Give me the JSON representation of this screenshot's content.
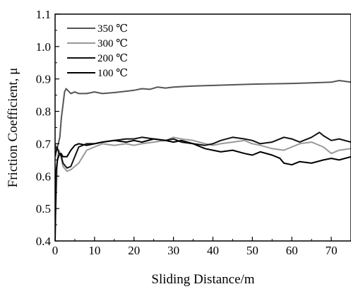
{
  "chart_data": {
    "type": "line",
    "title": "",
    "xlabel": "Sliding Distance/m",
    "ylabel": "Friction Coefficient, μ",
    "xlim": [
      0,
      75
    ],
    "ylim": [
      0.4,
      1.1
    ],
    "xticks": [
      0,
      10,
      20,
      30,
      40,
      50,
      60,
      70
    ],
    "xtick_labels": [
      "0",
      "10",
      "20",
      "30",
      "40",
      "50",
      "60",
      "70"
    ],
    "yticks": [
      0.4,
      0.5,
      0.6,
      0.7,
      0.8,
      0.9,
      1.0,
      1.1
    ],
    "ytick_labels": [
      "0.4",
      "0.5",
      "0.6",
      "0.7",
      "0.8",
      "0.9",
      "1.0",
      "1.1"
    ],
    "grid": false,
    "legend_position": "top-left",
    "series": [
      {
        "name": "350 ℃",
        "color": "#555555",
        "x": [
          0,
          0.4,
          0.8,
          1.2,
          1.6,
          2.0,
          2.4,
          2.8,
          3.2,
          4,
          5,
          6,
          8,
          10,
          12,
          15,
          18,
          20,
          22,
          24,
          26,
          28,
          30,
          35,
          40,
          45,
          50,
          55,
          60,
          65,
          70,
          72,
          75
        ],
        "y": [
          0.7,
          0.68,
          0.7,
          0.72,
          0.78,
          0.82,
          0.86,
          0.87,
          0.865,
          0.855,
          0.86,
          0.855,
          0.855,
          0.86,
          0.855,
          0.858,
          0.862,
          0.865,
          0.87,
          0.868,
          0.875,
          0.872,
          0.875,
          0.878,
          0.88,
          0.882,
          0.884,
          0.885,
          0.886,
          0.888,
          0.89,
          0.895,
          0.89
        ]
      },
      {
        "name": "300 ℃",
        "color": "#999999",
        "x": [
          0,
          0.3,
          0.6,
          1.0,
          1.5,
          2.0,
          3,
          4,
          5,
          6,
          7,
          8,
          10,
          12,
          15,
          18,
          20,
          22,
          25,
          28,
          30,
          32,
          35,
          38,
          40,
          42,
          45,
          48,
          50,
          52,
          55,
          58,
          60,
          62,
          65,
          68,
          70,
          72,
          75
        ],
        "y": [
          0.45,
          0.55,
          0.66,
          0.68,
          0.66,
          0.63,
          0.615,
          0.62,
          0.63,
          0.64,
          0.66,
          0.68,
          0.69,
          0.7,
          0.695,
          0.7,
          0.695,
          0.7,
          0.705,
          0.71,
          0.72,
          0.715,
          0.71,
          0.7,
          0.695,
          0.7,
          0.705,
          0.71,
          0.7,
          0.695,
          0.685,
          0.68,
          0.69,
          0.7,
          0.705,
          0.69,
          0.67,
          0.68,
          0.685
        ]
      },
      {
        "name": "200 ℃",
        "color": "#111111",
        "x": [
          0,
          0.5,
          1.0,
          1.5,
          2.0,
          3,
          4,
          5,
          6,
          8,
          10,
          12,
          15,
          18,
          20,
          22,
          25,
          28,
          30,
          32,
          35,
          38,
          40,
          42,
          45,
          48,
          50,
          52,
          55,
          58,
          60,
          62,
          65,
          67,
          68,
          70,
          72,
          75
        ],
        "y": [
          0.66,
          0.69,
          0.67,
          0.665,
          0.64,
          0.625,
          0.63,
          0.66,
          0.69,
          0.7,
          0.7,
          0.705,
          0.71,
          0.715,
          0.715,
          0.72,
          0.715,
          0.71,
          0.715,
          0.705,
          0.7,
          0.695,
          0.7,
          0.71,
          0.72,
          0.715,
          0.71,
          0.7,
          0.705,
          0.72,
          0.715,
          0.705,
          0.72,
          0.735,
          0.725,
          0.71,
          0.715,
          0.705
        ]
      },
      {
        "name": "100 ℃",
        "color": "#000000",
        "x": [
          0,
          0.3,
          0.6,
          1.0,
          1.5,
          2.0,
          3,
          4,
          5,
          6,
          8,
          10,
          12,
          15,
          18,
          20,
          22,
          25,
          28,
          30,
          32,
          35,
          38,
          40,
          42,
          45,
          48,
          50,
          52,
          55,
          57,
          58,
          60,
          62,
          65,
          68,
          70,
          72,
          75
        ],
        "y": [
          0.4,
          0.62,
          0.65,
          0.665,
          0.67,
          0.66,
          0.66,
          0.68,
          0.695,
          0.7,
          0.695,
          0.7,
          0.705,
          0.71,
          0.705,
          0.71,
          0.705,
          0.715,
          0.71,
          0.705,
          0.71,
          0.7,
          0.685,
          0.68,
          0.675,
          0.68,
          0.67,
          0.665,
          0.675,
          0.665,
          0.655,
          0.64,
          0.635,
          0.645,
          0.64,
          0.65,
          0.655,
          0.65,
          0.66
        ]
      }
    ]
  }
}
